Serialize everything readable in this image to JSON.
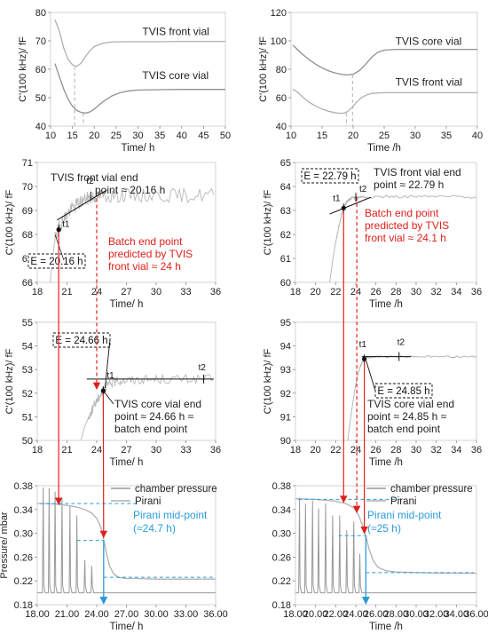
{
  "chart_data": [
    {
      "id": "a",
      "type": "line",
      "xlabel": "Time/ h",
      "ylabel": "C'(100 kHz)/ fF",
      "xlim": [
        10,
        50
      ],
      "ylim": [
        40,
        80
      ],
      "xticks": [
        10,
        15,
        20,
        25,
        30,
        35,
        40,
        45,
        50
      ],
      "yticks": [
        40,
        50,
        60,
        70,
        80
      ],
      "series": [
        {
          "name": "TVIS front vial",
          "color": "#b0b0b0",
          "x": [
            11,
            12,
            13,
            14,
            15,
            16,
            17,
            18,
            19,
            20,
            22,
            24,
            27,
            30,
            35,
            40,
            45,
            50
          ],
          "y": [
            77.5,
            73.5,
            67.5,
            63.5,
            61.6,
            61.0,
            62.2,
            64.5,
            66.5,
            68.0,
            69.2,
            69.6,
            69.7,
            69.7,
            69.7,
            69.8,
            69.8,
            69.8
          ]
        },
        {
          "name": "TVIS core vial",
          "color": "#909090",
          "x": [
            11,
            12,
            13,
            14,
            15,
            16,
            17,
            18,
            19,
            20,
            21,
            22,
            24,
            26,
            28,
            30,
            35,
            40,
            45,
            50
          ],
          "y": [
            62.0,
            57.5,
            53.0,
            49.5,
            47.0,
            45.5,
            44.8,
            44.6,
            45.0,
            46.0,
            47.3,
            48.6,
            50.6,
            51.8,
            52.4,
            52.7,
            52.8,
            52.9,
            52.9,
            52.9
          ]
        }
      ],
      "annotations": [
        {
          "text": "TVIS front vial",
          "x": 31,
          "y": 72
        },
        {
          "text": "TVIS core vial",
          "x": 31,
          "y": 56.5
        }
      ],
      "vlines": [
        {
          "x": 15.5,
          "y0": 40,
          "y1": 61.0
        },
        {
          "x": 17.5,
          "y0": 40,
          "y1": 44.6
        }
      ]
    },
    {
      "id": "b",
      "type": "line",
      "xlabel": "Time /h",
      "ylabel": "C'(100 kHz)/ fF",
      "xlim": [
        10,
        40
      ],
      "ylim": [
        40,
        120
      ],
      "xticks": [
        10,
        15,
        20,
        25,
        30,
        35,
        40
      ],
      "yticks": [
        40,
        60,
        80,
        100,
        120
      ],
      "series": [
        {
          "name": "TVIS core vial",
          "color": "#909090",
          "x": [
            10.3,
            11,
            12,
            13,
            14,
            15,
            16,
            17,
            18,
            19,
            20,
            21,
            22,
            23,
            24,
            25,
            27,
            30,
            35,
            40
          ],
          "y": [
            97.0,
            94.0,
            90.0,
            86.5,
            83.5,
            81.0,
            79.0,
            77.5,
            76.5,
            76.0,
            76.5,
            79.0,
            83.5,
            88.5,
            92.0,
            93.5,
            94.0,
            94.0,
            94.0,
            94.0
          ]
        },
        {
          "name": "TVIS front vial",
          "color": "#b0b0b0",
          "x": [
            10.3,
            11,
            12,
            13,
            14,
            15,
            16,
            17,
            18,
            18.6,
            19.2,
            19.8,
            20.5,
            21.3,
            22.2,
            23,
            25,
            30,
            35,
            40
          ],
          "y": [
            66.0,
            64.0,
            60.0,
            56.5,
            54.0,
            52.0,
            50.5,
            49.5,
            49.0,
            49.2,
            50.5,
            53.0,
            56.5,
            60.0,
            62.0,
            63.0,
            63.5,
            63.5,
            63.5,
            63.5
          ]
        }
      ],
      "annotations": [
        {
          "text": "TVIS core vial",
          "x": 26.8,
          "y": 97.3
        },
        {
          "text": "TVIS front vial",
          "x": 26.8,
          "y": 68.3
        }
      ],
      "vlines": [
        {
          "x": 18.9,
          "y0": 40,
          "y1": 49.2
        },
        {
          "x": 19.9,
          "y0": 40,
          "y1": 76.3
        }
      ]
    },
    {
      "id": "c",
      "type": "line",
      "xlabel": "Time/ h",
      "ylabel": "C'(100 kHz)/ fF",
      "xlim": [
        18,
        36
      ],
      "ylim": [
        66,
        71
      ],
      "xticks": [
        18,
        21,
        24,
        27,
        30,
        33,
        36
      ],
      "yticks": [
        66,
        67,
        68,
        69,
        70,
        71
      ],
      "series": [
        {
          "name": "TVIS front vial",
          "color": "#b8b8b8",
          "noise": 0.3,
          "x": [
            19.3,
            19.5,
            19.8,
            20.16,
            20.6,
            21.2,
            22.0,
            22.8,
            23.5,
            24.0,
            25,
            27,
            30,
            33,
            35.8
          ],
          "y": [
            66.0,
            66.9,
            67.8,
            68.25,
            68.6,
            68.95,
            69.25,
            69.45,
            69.55,
            69.6,
            69.62,
            69.62,
            69.62,
            69.62,
            69.65
          ]
        }
      ],
      "tangent": {
        "x0": 20.0,
        "y0": 68.6,
        "x1": 25.0,
        "y1": 69.85
      },
      "points": [
        {
          "x": 20.16,
          "y": 68.2,
          "label": "t1"
        },
        {
          "x": 23.4,
          "y": 69.6,
          "label": "t2"
        }
      ],
      "endpoint_box": "E = 20.16 h",
      "annotations": [
        {
          "text": "TVIS front vial end",
          "color": "#222222"
        },
        {
          "text": "point ≈ 20.16 h",
          "color": "#222222"
        },
        {
          "text": "Batch end point",
          "color": "#e0201b"
        },
        {
          "text": "predicted by TVIS",
          "color": "#e0201b"
        },
        {
          "text": "front vial ≈ 24 h",
          "color": "#e0201b"
        }
      ]
    },
    {
      "id": "d",
      "type": "line",
      "xlabel": "Time /h",
      "ylabel": "C'(100 kHz)/ fF",
      "xlim": [
        18,
        36
      ],
      "ylim": [
        60,
        65
      ],
      "xticks": [
        18,
        20,
        22,
        24,
        26,
        28,
        30,
        32,
        34,
        36
      ],
      "yticks": [
        60,
        61,
        62,
        63,
        64,
        65
      ],
      "series": [
        {
          "name": "TVIS front vial",
          "color": "#b0b0b0",
          "noise": 0.06,
          "x": [
            21.4,
            21.7,
            22.0,
            22.3,
            22.6,
            22.79,
            23.0,
            23.3,
            23.7,
            24.2,
            25,
            28,
            32,
            36
          ],
          "y": [
            60.0,
            60.9,
            61.7,
            62.3,
            62.85,
            63.1,
            63.3,
            63.45,
            63.52,
            63.55,
            63.57,
            63.57,
            63.57,
            63.57
          ]
        }
      ],
      "tangent": {
        "x0": 21.4,
        "y0": 62.85,
        "x1": 25.5,
        "y1": 63.55
      },
      "points": [
        {
          "x": 22.79,
          "y": 63.1,
          "label": "t1"
        },
        {
          "x": 24.0,
          "y": 63.55,
          "label": "t2"
        }
      ],
      "endpoint_box": "E = 22.79 h",
      "annotations": [
        {
          "text": "TVIS front vial end",
          "color": "#222222"
        },
        {
          "text": "point ≈ 22.79 h",
          "color": "#222222"
        },
        {
          "text": "Batch end point",
          "color": "#e0201b"
        },
        {
          "text": "predicted by TVIS",
          "color": "#e0201b"
        },
        {
          "text": "front vial ≈ 24.1 h",
          "color": "#e0201b"
        }
      ]
    },
    {
      "id": "e",
      "type": "line",
      "xlabel": "Time/ h",
      "ylabel": "C'(100 kHz)/ fF",
      "xlim": [
        18,
        36
      ],
      "ylim": [
        50,
        55
      ],
      "xticks": [
        18,
        21,
        24,
        27,
        30,
        33,
        36
      ],
      "yticks": [
        50,
        51,
        52,
        53,
        54,
        55
      ],
      "series": [
        {
          "name": "TVIS core vial",
          "color": "#b8b8b8",
          "noise": 0.2,
          "x": [
            22.4,
            22.8,
            23.2,
            23.6,
            24.0,
            24.4,
            24.66,
            25.0,
            25.5,
            26.5,
            28,
            30,
            33,
            35.8
          ],
          "y": [
            50.0,
            50.6,
            51.0,
            51.35,
            51.7,
            51.95,
            52.1,
            52.3,
            52.45,
            52.55,
            52.58,
            52.6,
            52.6,
            52.6
          ]
        }
      ],
      "tangent": {
        "x0": 23.0,
        "y0": 52.6,
        "x1": 35.8,
        "y1": 52.6
      },
      "points": [
        {
          "x": 24.66,
          "y": 52.1,
          "label": "t1"
        },
        {
          "x": 34.8,
          "y": 52.6,
          "label": "t2"
        }
      ],
      "endpoint_box": "E = 24.66 h",
      "annotations": [
        {
          "text": "TVIS core vial end",
          "color": "#222222"
        },
        {
          "text": "point ≈ 24.66 h ≈",
          "color": "#222222"
        },
        {
          "text": "batch end point",
          "color": "#222222"
        }
      ]
    },
    {
      "id": "f",
      "type": "line",
      "xlabel": "Time /h",
      "ylabel": "C'(100 kHz)/ fF",
      "xlim": [
        18,
        36
      ],
      "ylim": [
        90,
        95
      ],
      "xticks": [
        18,
        20,
        22,
        24,
        26,
        28,
        30,
        32,
        34,
        36
      ],
      "yticks": [
        90,
        91,
        92,
        93,
        94,
        95
      ],
      "series": [
        {
          "name": "TVIS core vial",
          "color": "#b0b0b0",
          "noise": 0.04,
          "x": [
            23.2,
            23.6,
            24.0,
            24.4,
            24.85,
            25.2,
            26,
            28,
            30,
            33,
            36
          ],
          "y": [
            90.0,
            91.3,
            92.4,
            93.1,
            93.45,
            93.52,
            93.55,
            93.55,
            93.55,
            93.55,
            93.55
          ]
        }
      ],
      "tangent": {
        "x0": 24.6,
        "y0": 93.55,
        "x1": 29.5,
        "y1": 93.55
      },
      "points": [
        {
          "x": 24.85,
          "y": 93.45,
          "label": "t1"
        },
        {
          "x": 28.3,
          "y": 93.55,
          "label": "t2"
        }
      ],
      "endpoint_box": "E = 24.85 h",
      "annotations": [
        {
          "text": "TVIS core vial end",
          "color": "#222222"
        },
        {
          "text": "point ≈ 24.85 h ≈",
          "color": "#222222"
        },
        {
          "text": "batch end point",
          "color": "#222222"
        }
      ]
    },
    {
      "id": "g",
      "type": "line",
      "xlabel": "Time/ h",
      "ylabel": "Pressure/ mbar",
      "xlim": [
        18,
        36
      ],
      "ylim": [
        0.18,
        0.38
      ],
      "xticks": [
        18,
        21,
        24,
        27,
        30,
        33,
        36
      ],
      "yticks": [
        0.18,
        0.22,
        0.26,
        0.3,
        0.34,
        0.38
      ],
      "series": [
        {
          "name": "chamber pressure",
          "color": "#999999",
          "baseline": 0.2,
          "spikes": [
            {
              "x": 18.6,
              "y": 0.377
            },
            {
              "x": 19.2,
              "y": 0.376
            },
            {
              "x": 19.8,
              "y": 0.37
            },
            {
              "x": 20.5,
              "y": 0.36
            },
            {
              "x": 21.3,
              "y": 0.345
            },
            {
              "x": 22.0,
              "y": 0.33
            },
            {
              "x": 22.8,
              "y": 0.255
            },
            {
              "x": 23.5,
              "y": 0.245
            }
          ]
        },
        {
          "name": "Pirani",
          "color": "#b0b0b0",
          "x": [
            18.0,
            19.0,
            20.0,
            21.0,
            22.0,
            22.8,
            23.5,
            24.0,
            24.4,
            24.7,
            25.0,
            25.3,
            25.7,
            26.2,
            27,
            28,
            30,
            33,
            36
          ],
          "y": [
            0.35,
            0.35,
            0.349,
            0.347,
            0.344,
            0.34,
            0.334,
            0.325,
            0.311,
            0.29,
            0.265,
            0.245,
            0.232,
            0.226,
            0.224,
            0.224,
            0.223,
            0.223,
            0.223
          ]
        }
      ],
      "legend": [
        {
          "text": "chamber pressure",
          "color": "#999999"
        },
        {
          "text": "Pirani",
          "color": "#b0b0b0"
        }
      ],
      "midpoint": {
        "x": 24.7,
        "y_high": 0.35,
        "y_mid": 0.288,
        "y_low": 0.226
      },
      "annotations": [
        {
          "text": "Pirani mid-point",
          "color": "#2a9bdb"
        },
        {
          "text": "(≈24.7 h)",
          "color": "#2a9bdb"
        }
      ]
    },
    {
      "id": "h",
      "type": "line",
      "xlabel": "Time /h",
      "ylabel": "",
      "xlim": [
        18,
        36
      ],
      "ylim": [
        0.18,
        0.38
      ],
      "xticks": [
        18,
        20,
        22,
        24,
        26,
        28,
        30,
        32,
        34,
        36
      ],
      "yticks": [
        0.18,
        0.22,
        0.26,
        0.3,
        0.34,
        0.38
      ],
      "series": [
        {
          "name": "chamber pressure",
          "color": "#999999",
          "baseline": 0.2,
          "spikes": [
            {
              "x": 18.4,
              "y": 0.36
            },
            {
              "x": 19.0,
              "y": 0.35
            },
            {
              "x": 19.7,
              "y": 0.355
            },
            {
              "x": 20.3,
              "y": 0.342
            },
            {
              "x": 21.0,
              "y": 0.35
            },
            {
              "x": 21.7,
              "y": 0.33
            },
            {
              "x": 22.4,
              "y": 0.33
            },
            {
              "x": 23.1,
              "y": 0.305
            },
            {
              "x": 23.8,
              "y": 0.32
            },
            {
              "x": 24.4,
              "y": 0.265
            }
          ]
        },
        {
          "name": "Pirani",
          "color": "#b0b0b0",
          "x": [
            18.0,
            20.0,
            22.0,
            23.0,
            23.8,
            24.3,
            24.7,
            25.0,
            25.3,
            25.7,
            26.2,
            27,
            28,
            30,
            33,
            36
          ],
          "y": [
            0.358,
            0.357,
            0.354,
            0.35,
            0.343,
            0.33,
            0.312,
            0.296,
            0.275,
            0.255,
            0.243,
            0.237,
            0.235,
            0.234,
            0.233,
            0.233
          ]
        }
      ],
      "legend": [
        {
          "text": "chamber pressure",
          "color": "#999999"
        },
        {
          "text": "Pirani",
          "color": "#b0b0b0"
        }
      ],
      "midpoint": {
        "x": 25.0,
        "y_high": 0.357,
        "y_mid": 0.296,
        "y_low": 0.234
      },
      "annotations": [
        {
          "text": "Pirani mid-point",
          "color": "#2a9bdb"
        },
        {
          "text": "(≈25 h)",
          "color": "#2a9bdb"
        }
      ]
    }
  ]
}
